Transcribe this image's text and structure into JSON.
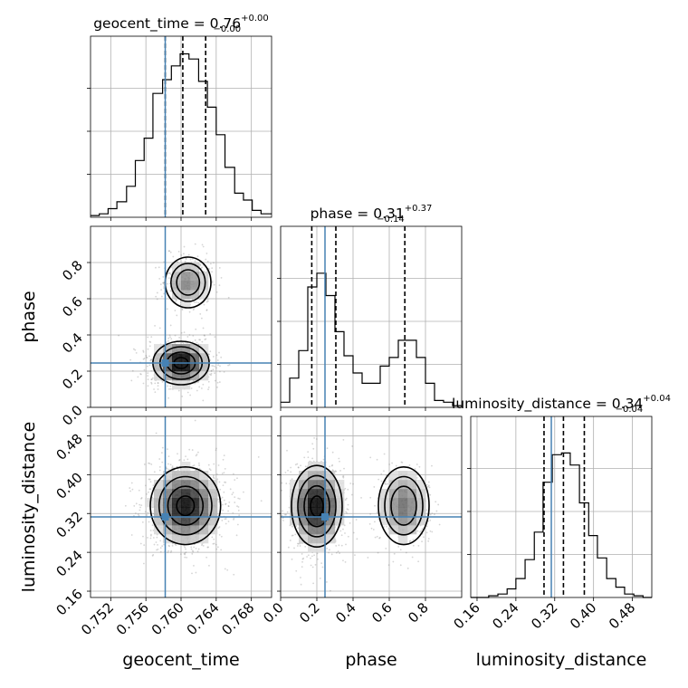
{
  "parameters": [
    {
      "name": "geocent_time",
      "title": {
        "text": "geocent_time = 0.76",
        "plus": "+0.00",
        "minus": "−0.00"
      },
      "ticks": [
        "0.752",
        "0.756",
        "0.760",
        "0.764",
        "0.768"
      ]
    },
    {
      "name": "phase",
      "title": {
        "text": "phase = 0.31",
        "plus": "+0.37",
        "minus": "−0.14"
      },
      "ticks": [
        "0.0",
        "0.2",
        "0.4",
        "0.6",
        "0.8"
      ]
    },
    {
      "name": "luminosity_distance",
      "title": {
        "text": "luminosity_distance = 0.34",
        "plus": "+0.04",
        "minus": "−0.04"
      },
      "ticks": [
        "0.16",
        "0.24",
        "0.32",
        "0.40",
        "0.48"
      ]
    }
  ],
  "colors": {
    "truth": "#4682b4",
    "hist": "#000000",
    "contour": "#000000",
    "grid": "#b0b0b0",
    "points": "#888888"
  },
  "chart_data": {
    "type": "corner",
    "grid": true,
    "truths": {
      "geocent_time": 0.7582,
      "phase": 0.245,
      "luminosity_distance": 0.313
    },
    "ranges": {
      "geocent_time": [
        0.7497,
        0.7703
      ],
      "phase": [
        0.0,
        1.0
      ],
      "luminosity_distance": [
        0.147,
        0.52
      ]
    },
    "marginals": [
      {
        "parameter": "geocent_time",
        "bin_edges": [
          0.7497,
          0.7507,
          0.7517,
          0.7527,
          0.7538,
          0.7548,
          0.7558,
          0.7568,
          0.7579,
          0.7589,
          0.7599,
          0.7609,
          0.762,
          0.763,
          0.764,
          0.765,
          0.7661,
          0.7671,
          0.7681,
          0.7691,
          0.7703
        ],
        "density": [
          0.01,
          0.02,
          0.05,
          0.09,
          0.18,
          0.33,
          0.46,
          0.72,
          0.8,
          0.88,
          0.95,
          0.92,
          0.79,
          0.64,
          0.48,
          0.29,
          0.14,
          0.1,
          0.04,
          0.02
        ],
        "median": 0.7602,
        "q16": 0.7582,
        "q84": 0.7628
      },
      {
        "parameter": "phase",
        "bin_edges": [
          0.0,
          0.05,
          0.1,
          0.15,
          0.2,
          0.25,
          0.3,
          0.35,
          0.4,
          0.45,
          0.5,
          0.55,
          0.6,
          0.65,
          0.7,
          0.75,
          0.8,
          0.85,
          0.9,
          0.95,
          1.0
        ],
        "density": [
          0.03,
          0.17,
          0.33,
          0.7,
          0.78,
          0.65,
          0.44,
          0.3,
          0.2,
          0.14,
          0.14,
          0.24,
          0.29,
          0.39,
          0.39,
          0.29,
          0.14,
          0.04,
          0.03,
          0.01
        ],
        "median": 0.305,
        "q16": 0.172,
        "q84": 0.686
      },
      {
        "parameter": "luminosity_distance",
        "bin_edges": [
          0.147,
          0.166,
          0.184,
          0.203,
          0.222,
          0.24,
          0.259,
          0.278,
          0.296,
          0.315,
          0.334,
          0.352,
          0.371,
          0.39,
          0.408,
          0.427,
          0.446,
          0.464,
          0.483,
          0.502,
          0.52
        ],
        "density": [
          0.0,
          0.0,
          0.01,
          0.02,
          0.05,
          0.11,
          0.22,
          0.38,
          0.67,
          0.83,
          0.84,
          0.77,
          0.55,
          0.36,
          0.23,
          0.11,
          0.06,
          0.02,
          0.01,
          0.0
        ],
        "median": 0.338,
        "q16": 0.298,
        "q84": 0.381
      }
    ],
    "joint": [
      {
        "x": "geocent_time",
        "y": "phase",
        "modes": [
          {
            "center": [
              0.76,
              0.245
            ],
            "spread": [
              0.0016,
              0.06
            ],
            "weight": 0.7
          },
          {
            "center": [
              0.7608,
              0.69
            ],
            "spread": [
              0.0013,
              0.07
            ],
            "weight": 0.3
          }
        ]
      },
      {
        "x": "geocent_time",
        "y": "luminosity_distance",
        "modes": [
          {
            "center": [
              0.7605,
              0.336
            ],
            "spread": [
              0.002,
              0.04
            ],
            "weight": 1.0
          }
        ]
      },
      {
        "x": "phase",
        "y": "luminosity_distance",
        "modes": [
          {
            "center": [
              0.2,
              0.335
            ],
            "spread": [
              0.07,
              0.042
            ],
            "weight": 0.66
          },
          {
            "center": [
              0.68,
              0.336
            ],
            "spread": [
              0.07,
              0.04
            ],
            "weight": 0.34
          }
        ]
      }
    ]
  }
}
